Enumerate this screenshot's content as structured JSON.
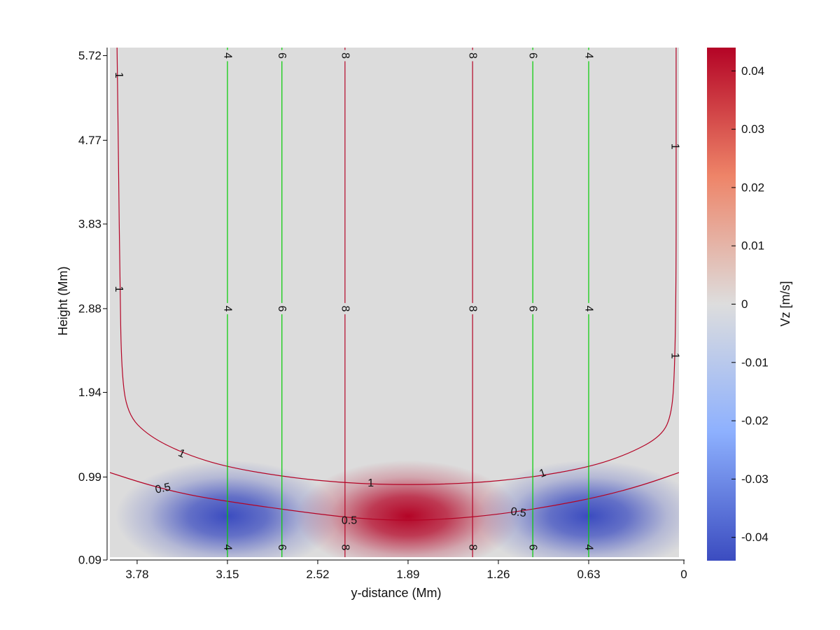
{
  "chart_data": {
    "type": "heatmap",
    "xlabel": "y-distance (Mm)",
    "ylabel": "Height (Mm)",
    "colorbar_label": "Vz [m/s]",
    "x_reversed": true,
    "xlim": [
      3.97,
      0
    ],
    "ylim": [
      0.09,
      5.81
    ],
    "x_ticks": [
      "3.78",
      "3.15",
      "2.52",
      "1.89",
      "1.26",
      "0.63",
      "0"
    ],
    "x_tick_values": [
      3.78,
      3.15,
      2.52,
      1.89,
      1.26,
      0.63,
      0
    ],
    "y_ticks": [
      "0.09",
      "0.99",
      "1.94",
      "2.88",
      "3.83",
      "4.77",
      "5.72"
    ],
    "y_tick_values": [
      0.09,
      0.99,
      1.94,
      2.88,
      3.83,
      4.77,
      5.72
    ],
    "colorbar": {
      "min": -0.044,
      "max": 0.044,
      "ticks": [
        "0.04",
        "0.03",
        "0.02",
        "0.01",
        "0",
        "-0.01",
        "-0.02",
        "-0.03",
        "-0.04"
      ],
      "tick_values": [
        0.04,
        0.03,
        0.02,
        0.01,
        0,
        -0.01,
        -0.02,
        -0.03,
        -0.04
      ],
      "low_color": "#3b4cc0",
      "mid_color": "#dddddd",
      "high_color": "#b40426"
    },
    "background_color": "#dcdcdc",
    "blobs": [
      {
        "sign": "negative",
        "x_center": 3.15,
        "y_center": 0.55,
        "peak": -0.044
      },
      {
        "sign": "positive",
        "x_center": 1.89,
        "y_center": 0.55,
        "peak": 0.044
      },
      {
        "sign": "negative",
        "x_center": 0.63,
        "y_center": 0.55,
        "peak": -0.044
      }
    ],
    "vertical_contours": [
      {
        "x": 3.15,
        "label": "4",
        "color": "#00cc00"
      },
      {
        "x": 2.77,
        "label": "6",
        "color": "#00cc00"
      },
      {
        "x": 2.33,
        "label": "8",
        "color": "#b40426"
      },
      {
        "x": 1.44,
        "label": "8",
        "color": "#b40426"
      },
      {
        "x": 1.02,
        "label": "6",
        "color": "#00cc00"
      },
      {
        "x": 0.63,
        "label": "4",
        "color": "#00cc00"
      }
    ],
    "curved_contours": [
      {
        "label": "1",
        "color": "#b40426",
        "points": [
          [
            3.92,
            5.81
          ],
          [
            3.91,
            4.5
          ],
          [
            3.9,
            3.2
          ],
          [
            3.89,
            2.2
          ],
          [
            3.85,
            1.7
          ],
          [
            3.7,
            1.45
          ],
          [
            3.45,
            1.25
          ],
          [
            3.15,
            1.1
          ],
          [
            2.7,
            0.98
          ],
          [
            2.3,
            0.92
          ],
          [
            1.89,
            0.9
          ],
          [
            1.45,
            0.92
          ],
          [
            1.05,
            0.98
          ],
          [
            0.63,
            1.1
          ],
          [
            0.35,
            1.25
          ],
          [
            0.12,
            1.45
          ],
          [
            0.05,
            1.7
          ],
          [
            0.03,
            2.2
          ],
          [
            0.02,
            3.2
          ],
          [
            0.02,
            4.5
          ],
          [
            0.02,
            5.81
          ]
        ]
      },
      {
        "label": "0.5",
        "color": "#b40426",
        "points": [
          [
            3.97,
            1.04
          ],
          [
            3.7,
            0.9
          ],
          [
            3.4,
            0.78
          ],
          [
            3.0,
            0.68
          ],
          [
            2.5,
            0.57
          ],
          [
            2.2,
            0.52
          ],
          [
            1.89,
            0.5
          ],
          [
            1.6,
            0.52
          ],
          [
            1.26,
            0.57
          ],
          [
            0.9,
            0.66
          ],
          [
            0.55,
            0.77
          ],
          [
            0.25,
            0.9
          ],
          [
            0.0,
            1.04
          ]
        ]
      }
    ],
    "contour_labels": [
      {
        "text": "1",
        "x": 3.91,
        "y": 5.5,
        "rotate": 90
      },
      {
        "text": "1",
        "x": 3.91,
        "y": 3.1,
        "rotate": 90
      },
      {
        "text": "1",
        "x": 0.03,
        "y": 4.7,
        "rotate": 90
      },
      {
        "text": "1",
        "x": 0.03,
        "y": 2.35,
        "rotate": 90
      },
      {
        "text": "1",
        "x": 3.47,
        "y": 1.25,
        "rotate": 25
      },
      {
        "text": "1",
        "x": 2.15,
        "y": 0.92,
        "rotate": 0
      },
      {
        "text": "1",
        "x": 0.95,
        "y": 1.03,
        "rotate": -20
      },
      {
        "text": "0.5",
        "x": 3.6,
        "y": 0.86,
        "rotate": -12
      },
      {
        "text": "0.5",
        "x": 2.3,
        "y": 0.5,
        "rotate": 0
      },
      {
        "text": "0.5",
        "x": 1.12,
        "y": 0.59,
        "rotate": 8
      }
    ]
  }
}
